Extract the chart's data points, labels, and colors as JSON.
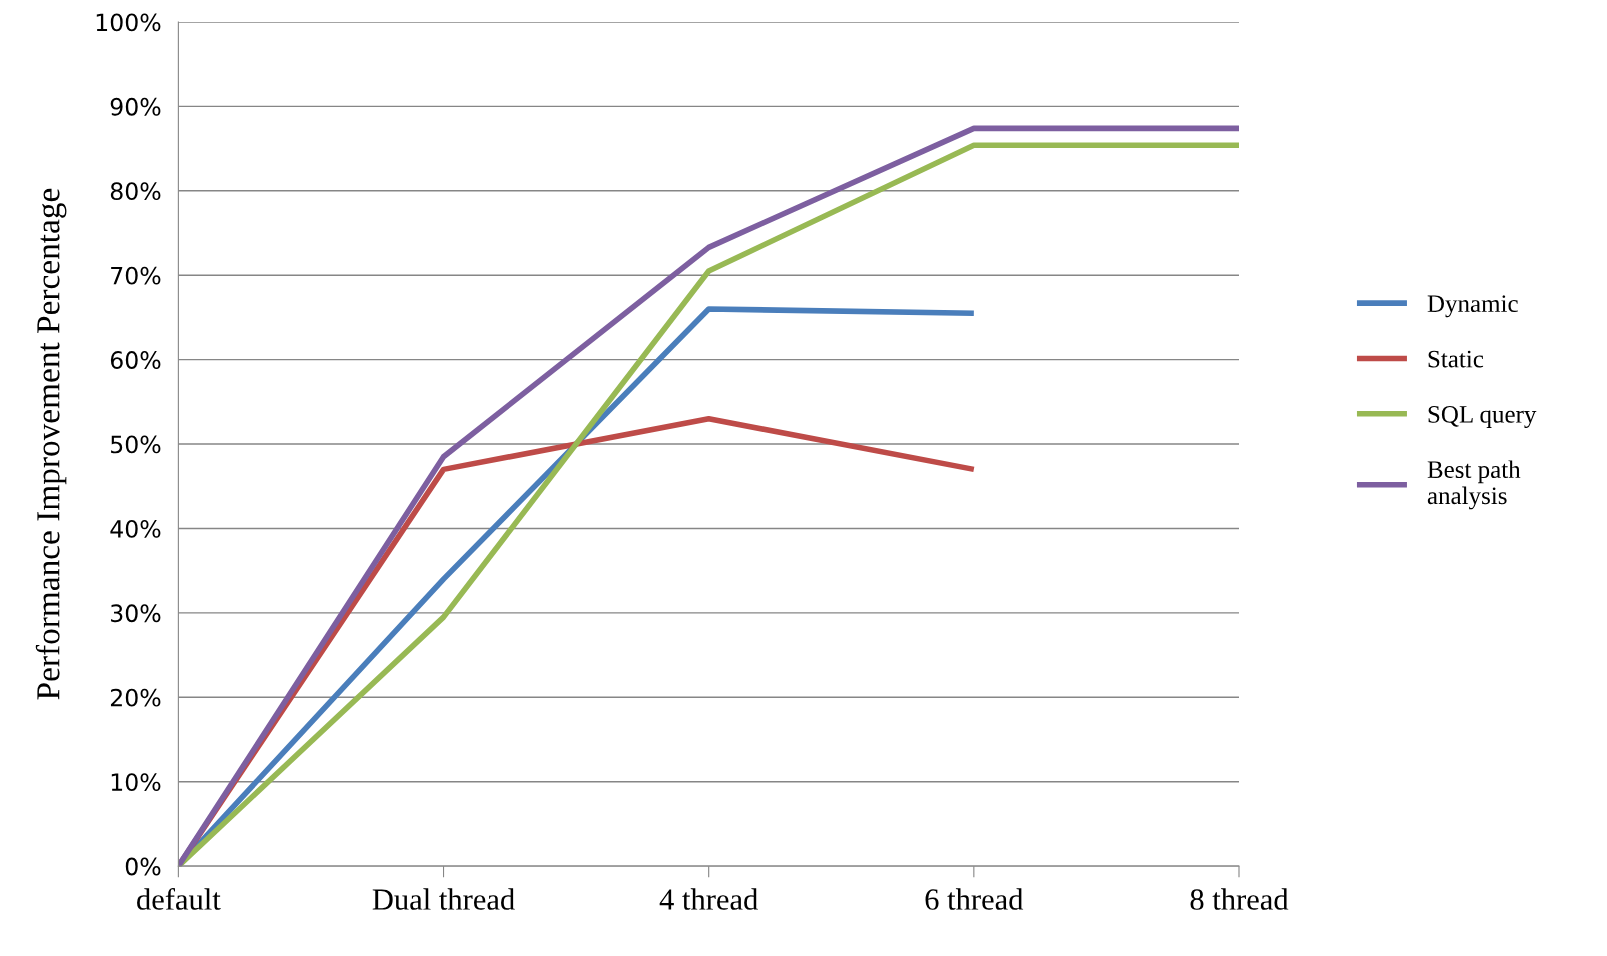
{
  "chart_data": {
    "type": "line",
    "ylabel": "Performance Improvement Percentage",
    "categories": [
      "default",
      "Dual thread",
      "4 thread",
      "6 thread",
      "8 thread"
    ],
    "series": [
      {
        "name": "Dynamic",
        "color": "#4a7ebb",
        "values": [
          0,
          34,
          66,
          65.5,
          null
        ]
      },
      {
        "name": "Static",
        "color": "#be4b48",
        "values": [
          0,
          47,
          53,
          47,
          null
        ]
      },
      {
        "name": "SQL query",
        "color": "#98b954",
        "values": [
          0,
          29.5,
          70.5,
          85.4,
          85.4
        ]
      },
      {
        "name": "Best path\nanalysis",
        "color": "#7d5fa0",
        "values": [
          0,
          48.5,
          73.3,
          87.4,
          87.4
        ]
      }
    ],
    "ylim": [
      0,
      100
    ],
    "yticks": [
      {
        "value": 0,
        "label": "0%"
      },
      {
        "value": 10,
        "label": "10%"
      },
      {
        "value": 20,
        "label": "20%"
      },
      {
        "value": 30,
        "label": "30%"
      },
      {
        "value": 40,
        "label": "40%"
      },
      {
        "value": 50,
        "label": "50%"
      },
      {
        "value": 60,
        "label": "60%"
      },
      {
        "value": 70,
        "label": "70%"
      },
      {
        "value": 80,
        "label": "80%"
      },
      {
        "value": 90,
        "label": "90%"
      },
      {
        "value": 100,
        "label": "100%"
      }
    ],
    "grid": "y",
    "legend": "right",
    "marker": "none",
    "line_style": "solid"
  }
}
